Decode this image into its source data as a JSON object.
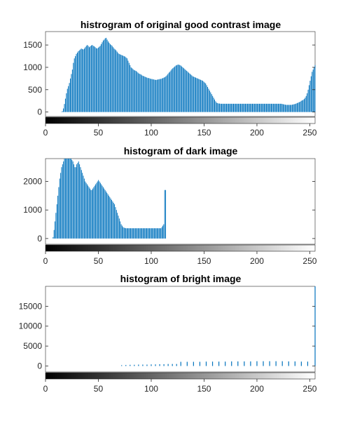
{
  "figure_title": "",
  "panels": [
    {
      "title": "histrogram of original good contrast image"
    },
    {
      "title": "histogram of dark image"
    },
    {
      "title": "histogram of bright image"
    }
  ],
  "colors": {
    "bar": "#0072BD",
    "axis": "#262626",
    "background": "#ffffff"
  },
  "chart_data": [
    {
      "type": "bar",
      "title": "histrogram of original good contrast image",
      "xlabel": "",
      "ylabel": "",
      "xlim": [
        0,
        255
      ],
      "ylim": [
        -100,
        1800
      ],
      "xticks": [
        0,
        50,
        100,
        150,
        200,
        250
      ],
      "yticks": [
        0,
        500,
        1000,
        1500
      ],
      "grid": false,
      "colorbar": "grayscale",
      "x_range": [
        0,
        255
      ],
      "values": [
        0,
        0,
        0,
        0,
        0,
        0,
        0,
        0,
        0,
        0,
        0,
        0,
        0,
        0,
        0,
        0,
        5,
        20,
        80,
        180,
        300,
        420,
        520,
        580,
        650,
        750,
        850,
        950,
        1100,
        1200,
        1250,
        1300,
        1330,
        1360,
        1380,
        1400,
        1420,
        1410,
        1400,
        1420,
        1450,
        1480,
        1500,
        1480,
        1450,
        1470,
        1490,
        1500,
        1480,
        1470,
        1450,
        1430,
        1420,
        1440,
        1460,
        1480,
        1520,
        1560,
        1600,
        1620,
        1650,
        1660,
        1620,
        1580,
        1550,
        1520,
        1500,
        1480,
        1450,
        1420,
        1400,
        1380,
        1350,
        1320,
        1300,
        1290,
        1280,
        1270,
        1260,
        1250,
        1240,
        1220,
        1200,
        1150,
        1100,
        1050,
        1000,
        980,
        960,
        940,
        930,
        920,
        900,
        880,
        860,
        850,
        840,
        820,
        810,
        800,
        790,
        780,
        770,
        760,
        760,
        750,
        740,
        740,
        730,
        730,
        720,
        720,
        720,
        730,
        730,
        740,
        740,
        750,
        760,
        770,
        780,
        800,
        820,
        850,
        880,
        900,
        930,
        960,
        980,
        1000,
        1020,
        1040,
        1050,
        1060,
        1060,
        1050,
        1040,
        1020,
        1000,
        980,
        960,
        940,
        920,
        900,
        880,
        860,
        840,
        820,
        800,
        790,
        780,
        770,
        760,
        750,
        740,
        730,
        720,
        710,
        700,
        680,
        660,
        640,
        600,
        560,
        520,
        480,
        440,
        400,
        360,
        320,
        280,
        240,
        210,
        200,
        190,
        190,
        185,
        185,
        185,
        185,
        185,
        185,
        185,
        185,
        185,
        185,
        185,
        185,
        185,
        185,
        185,
        185,
        185,
        185,
        185,
        185,
        185,
        185,
        185,
        185,
        185,
        185,
        185,
        185,
        185,
        185,
        185,
        185,
        185,
        185,
        185,
        185,
        185,
        185,
        185,
        185,
        185,
        185,
        185,
        185,
        185,
        185,
        185,
        185,
        185,
        185,
        185,
        185,
        185,
        185,
        185,
        185,
        185,
        185,
        185,
        185,
        185,
        185,
        180,
        175,
        170,
        165,
        160,
        160,
        160,
        160,
        160,
        160,
        165,
        170,
        175,
        180,
        190,
        200,
        210,
        220,
        230,
        250,
        260,
        270,
        290,
        320,
        360,
        420,
        500,
        600,
        700,
        800,
        900,
        950,
        1000,
        1050
      ]
    },
    {
      "type": "bar",
      "title": "histogram of dark image",
      "xlabel": "",
      "ylabel": "",
      "xlim": [
        0,
        255
      ],
      "ylim": [
        -200,
        2800
      ],
      "xticks": [
        0,
        50,
        100,
        150,
        200,
        250
      ],
      "yticks": [
        0,
        1000,
        2000
      ],
      "grid": false,
      "colorbar": "grayscale",
      "x_range": [
        0,
        255
      ],
      "values": [
        0,
        0,
        0,
        0,
        0,
        0,
        0,
        0,
        50,
        300,
        600,
        900,
        1200,
        1500,
        1800,
        2100,
        2300,
        2500,
        2600,
        2700,
        2800,
        2800,
        2800,
        2800,
        2800,
        2800,
        2800,
        2800,
        2750,
        2700,
        2600,
        2500,
        2500,
        2600,
        2650,
        2700,
        2600,
        2500,
        2400,
        2300,
        2200,
        2100,
        2000,
        1950,
        1900,
        1850,
        1800,
        1750,
        1700,
        1700,
        1750,
        1800,
        1850,
        1900,
        1950,
        2000,
        2050,
        2000,
        1950,
        1900,
        1850,
        1800,
        1750,
        1700,
        1650,
        1600,
        1550,
        1500,
        1450,
        1400,
        1350,
        1300,
        1250,
        1200,
        1100,
        1000,
        900,
        800,
        700,
        600,
        500,
        450,
        400,
        380,
        370,
        360,
        360,
        360,
        360,
        360,
        360,
        360,
        360,
        360,
        360,
        360,
        360,
        360,
        360,
        360,
        360,
        360,
        360,
        360,
        360,
        360,
        360,
        360,
        360,
        360,
        360,
        360,
        360,
        360,
        360,
        360,
        360,
        360,
        360,
        360,
        360,
        360,
        360,
        400,
        450,
        500,
        1700,
        1700,
        0,
        0,
        0,
        0,
        0,
        0,
        0,
        0,
        0,
        0,
        0,
        0,
        0,
        0,
        0,
        0,
        0,
        0,
        0,
        0,
        0,
        0,
        0,
        0,
        0,
        0,
        0,
        0,
        0,
        0,
        0,
        0,
        0,
        0,
        0,
        0,
        0,
        0,
        0,
        0,
        0,
        0,
        0,
        0,
        0,
        0,
        0,
        0,
        0,
        0,
        0,
        0,
        0,
        0,
        0,
        0,
        0,
        0,
        0,
        0,
        0,
        0,
        0,
        0,
        0,
        0,
        0,
        0,
        0,
        0,
        0,
        0,
        0,
        0,
        0,
        0,
        0,
        0,
        0,
        0,
        0,
        0,
        0,
        0,
        0,
        0,
        0,
        0,
        0,
        0,
        0,
        0,
        0,
        0,
        0,
        0,
        0,
        0,
        0,
        0,
        0,
        0,
        0,
        0,
        0,
        0,
        0,
        0,
        0,
        0,
        0,
        0,
        0,
        0,
        0,
        0,
        0,
        0,
        0,
        0,
        0,
        0,
        0,
        0,
        0,
        0,
        0,
        0,
        0,
        0,
        0,
        0,
        0,
        0,
        0,
        0,
        0,
        0,
        0,
        0,
        0,
        0,
        0,
        0,
        0,
        0,
        0,
        0,
        0,
        0,
        0,
        0,
        0,
        0,
        0,
        0,
        0,
        0
      ]
    },
    {
      "type": "bar",
      "title": "histogram of bright image",
      "xlabel": "",
      "ylabel": "",
      "xlim": [
        0,
        255
      ],
      "ylim": [
        -1500,
        20000
      ],
      "xticks": [
        0,
        50,
        100,
        150,
        200,
        250
      ],
      "yticks": [
        0,
        5000,
        10000,
        15000
      ],
      "grid": false,
      "colorbar": "grayscale",
      "x_range": [
        0,
        255
      ],
      "sparse": [
        {
          "x": 72,
          "y": 200
        },
        {
          "x": 76,
          "y": 250
        },
        {
          "x": 80,
          "y": 300
        },
        {
          "x": 84,
          "y": 300
        },
        {
          "x": 88,
          "y": 350
        },
        {
          "x": 92,
          "y": 350
        },
        {
          "x": 96,
          "y": 350
        },
        {
          "x": 100,
          "y": 400
        },
        {
          "x": 104,
          "y": 400
        },
        {
          "x": 108,
          "y": 450
        },
        {
          "x": 112,
          "y": 450
        },
        {
          "x": 116,
          "y": 500
        },
        {
          "x": 120,
          "y": 500
        },
        {
          "x": 124,
          "y": 500
        },
        {
          "x": 128,
          "y": 1050
        },
        {
          "x": 134,
          "y": 1050
        },
        {
          "x": 140,
          "y": 1050
        },
        {
          "x": 146,
          "y": 1050
        },
        {
          "x": 152,
          "y": 1100
        },
        {
          "x": 158,
          "y": 1100
        },
        {
          "x": 164,
          "y": 1100
        },
        {
          "x": 170,
          "y": 1100
        },
        {
          "x": 176,
          "y": 1150
        },
        {
          "x": 182,
          "y": 1150
        },
        {
          "x": 188,
          "y": 1150
        },
        {
          "x": 194,
          "y": 1150
        },
        {
          "x": 200,
          "y": 1200
        },
        {
          "x": 206,
          "y": 1200
        },
        {
          "x": 212,
          "y": 1200
        },
        {
          "x": 218,
          "y": 1200
        },
        {
          "x": 224,
          "y": 1200
        },
        {
          "x": 230,
          "y": 1150
        },
        {
          "x": 236,
          "y": 1150
        },
        {
          "x": 242,
          "y": 1100
        },
        {
          "x": 248,
          "y": 1100
        },
        {
          "x": 255,
          "y": 20000
        }
      ]
    }
  ]
}
